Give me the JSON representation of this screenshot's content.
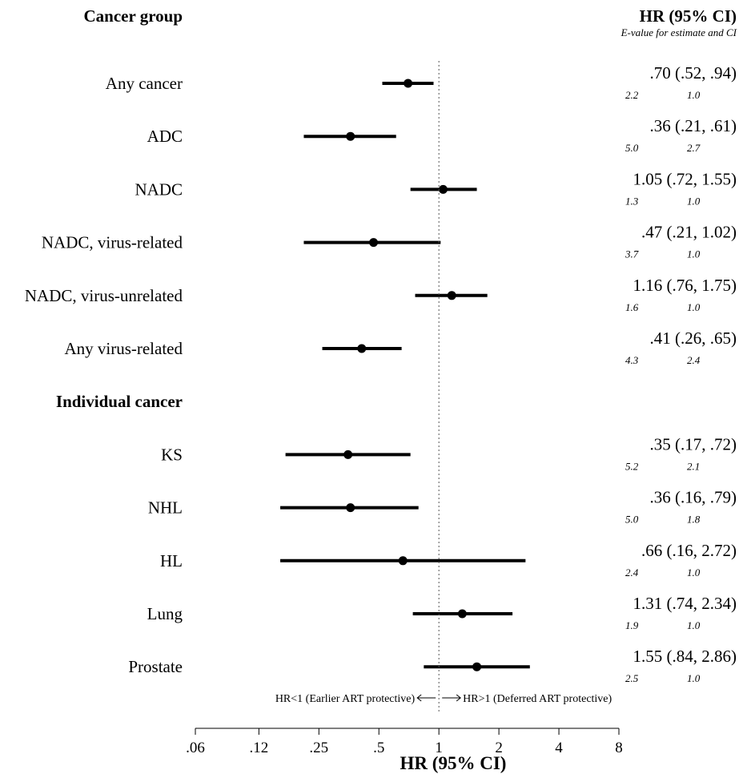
{
  "chart_data": {
    "type": "forest",
    "left_header": "Cancer group",
    "right_header": "HR (95% CI)",
    "right_subheader": "E-value for estimate and CI",
    "xlabel": "HR (95% CI)",
    "x_scale": "log",
    "xlim": [
      0.06,
      8
    ],
    "x_ticks": [
      {
        "value": 0.0625,
        "label": ".06"
      },
      {
        "value": 0.125,
        "label": ".12"
      },
      {
        "value": 0.25,
        "label": ".25"
      },
      {
        "value": 0.5,
        "label": ".5"
      },
      {
        "value": 1,
        "label": "1"
      },
      {
        "value": 2,
        "label": "2"
      },
      {
        "value": 4,
        "label": "4"
      },
      {
        "value": 8,
        "label": "8"
      }
    ],
    "reference_line": 1,
    "annotation_left": "HR<1 (Earlier ART protective)",
    "annotation_right": "HR>1 (Deferred ART protective)",
    "rows": [
      {
        "label": "Any cancer",
        "hr": 0.7,
        "lo": 0.52,
        "hi": 0.94,
        "text": ".70 (.52, .94)",
        "e_est": "2.2",
        "e_ci": "1.0"
      },
      {
        "label": "ADC",
        "hr": 0.36,
        "lo": 0.21,
        "hi": 0.61,
        "text": ".36 (.21, .61)",
        "e_est": "5.0",
        "e_ci": "2.7"
      },
      {
        "label": "NADC",
        "hr": 1.05,
        "lo": 0.72,
        "hi": 1.55,
        "text": "1.05 (.72, 1.55)",
        "e_est": "1.3",
        "e_ci": "1.0"
      },
      {
        "label": "NADC, virus-related",
        "hr": 0.47,
        "lo": 0.21,
        "hi": 1.02,
        "text": ".47 (.21, 1.02)",
        "e_est": "3.7",
        "e_ci": "1.0"
      },
      {
        "label": "NADC, virus-unrelated",
        "hr": 1.16,
        "lo": 0.76,
        "hi": 1.75,
        "text": "1.16 (.76, 1.75)",
        "e_est": "1.6",
        "e_ci": "1.0"
      },
      {
        "label": "Any virus-related",
        "hr": 0.41,
        "lo": 0.26,
        "hi": 0.65,
        "text": ".41 (.26, .65)",
        "e_est": "4.3",
        "e_ci": "2.4"
      },
      {
        "label": "Individual cancer",
        "header": true
      },
      {
        "label": "KS",
        "hr": 0.35,
        "lo": 0.17,
        "hi": 0.72,
        "text": ".35 (.17, .72)",
        "e_est": "5.2",
        "e_ci": "2.1"
      },
      {
        "label": "NHL",
        "hr": 0.36,
        "lo": 0.16,
        "hi": 0.79,
        "text": ".36 (.16, .79)",
        "e_est": "5.0",
        "e_ci": "1.8"
      },
      {
        "label": "HL",
        "hr": 0.66,
        "lo": 0.16,
        "hi": 2.72,
        "text": ".66 (.16, 2.72)",
        "e_est": "2.4",
        "e_ci": "1.0"
      },
      {
        "label": "Lung",
        "hr": 1.31,
        "lo": 0.74,
        "hi": 2.34,
        "text": "1.31 (.74, 2.34)",
        "e_est": "1.9",
        "e_ci": "1.0"
      },
      {
        "label": "Prostate",
        "hr": 1.55,
        "lo": 0.84,
        "hi": 2.86,
        "text": "1.55 (.84, 2.86)",
        "e_est": "2.5",
        "e_ci": "1.0"
      }
    ]
  }
}
